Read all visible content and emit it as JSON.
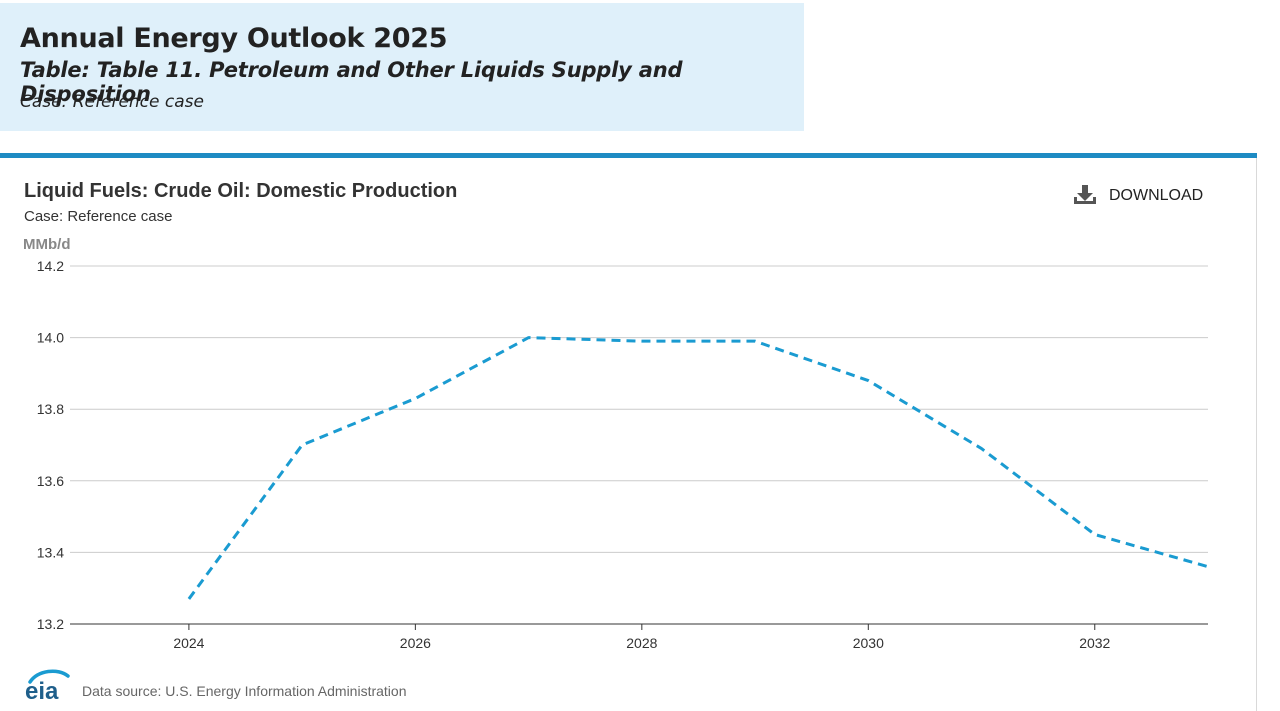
{
  "header": {
    "title": "Annual Energy Outlook 2025",
    "table": "Table: Table 11. Petroleum and Other Liquids Supply and Disposition",
    "case": "Case: Reference case"
  },
  "chart_panel": {
    "title": "Liquid Fuels: Crude Oil: Domestic Production",
    "subtitle": "Case: Reference case",
    "download_label": "DOWNLOAD"
  },
  "footer": {
    "logo_text": "eia",
    "source": "Data source: U.S. Energy Information Administration"
  },
  "colors": {
    "series": "#1a9bd1",
    "header_bg": "#dff0fa",
    "rule": "#1e8bc3"
  },
  "chart_data": {
    "type": "line",
    "title": "Liquid Fuels: Crude Oil: Domestic Production",
    "ylabel": "MMb/d",
    "xlabel": "",
    "ylim": [
      13.2,
      14.2
    ],
    "xlim": [
      2022.95,
      2033.0
    ],
    "yticks": [
      "13.2",
      "13.4",
      "13.6",
      "13.8",
      "14.0",
      "14.2"
    ],
    "xticks": [
      "2024",
      "2026",
      "2028",
      "2030",
      "2032"
    ],
    "grid": true,
    "series": [
      {
        "name": "Crude Oil: Domestic Production",
        "style": "dashed",
        "x": [
          2024,
          2025,
          2026,
          2027,
          2028,
          2029,
          2030,
          2031,
          2032,
          2033
        ],
        "values": [
          13.27,
          13.7,
          13.83,
          14.0,
          13.99,
          13.99,
          13.88,
          13.69,
          13.45,
          13.36
        ]
      }
    ]
  }
}
